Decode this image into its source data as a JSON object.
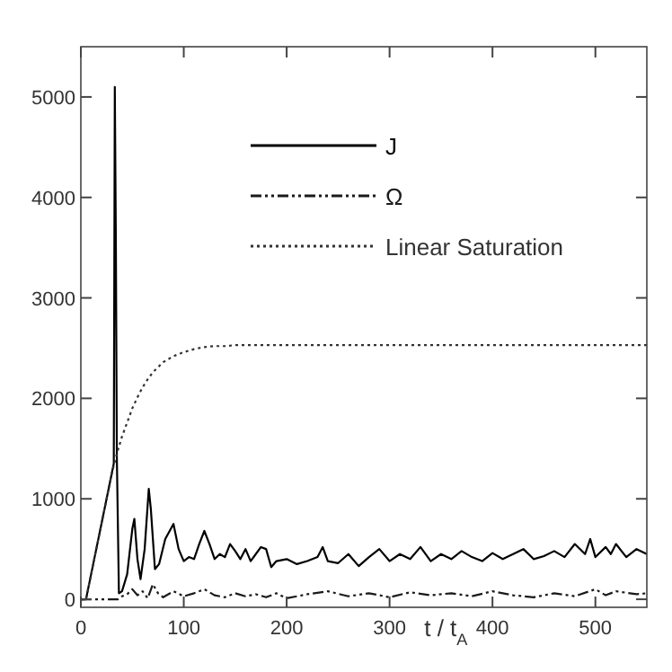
{
  "chart_data": {
    "type": "line",
    "xlabel": "t / t$_{A}$",
    "xlim": [
      0,
      550
    ],
    "ylim": [
      -80,
      5500
    ],
    "xticks": [
      0,
      100,
      200,
      300,
      400,
      500
    ],
    "yticks": [
      0,
      1000,
      2000,
      3000,
      4000,
      5000
    ],
    "legend": "top",
    "grid": false,
    "series": [
      {
        "name": "J",
        "color": "#000000",
        "line_style": "solid",
        "x": [
          0,
          5,
          10,
          15,
          20,
          25,
          30,
          32,
          33,
          34,
          35,
          37,
          40,
          45,
          50,
          52,
          55,
          58,
          62,
          66,
          68,
          72,
          76,
          82,
          90,
          95,
          100,
          105,
          110,
          115,
          120,
          125,
          130,
          135,
          140,
          145,
          150,
          155,
          160,
          165,
          170,
          175,
          180,
          185,
          190,
          200,
          210,
          220,
          230,
          235,
          240,
          250,
          260,
          270,
          280,
          290,
          300,
          310,
          320,
          330,
          340,
          350,
          360,
          370,
          380,
          390,
          400,
          410,
          420,
          430,
          440,
          450,
          460,
          470,
          480,
          490,
          495,
          500,
          510,
          515,
          520,
          530,
          540,
          550
        ],
        "values": [
          0,
          0,
          250,
          500,
          750,
          1000,
          1250,
          1350,
          5100,
          3600,
          1400,
          60,
          80,
          250,
          700,
          800,
          400,
          200,
          500,
          1100,
          900,
          300,
          350,
          600,
          750,
          500,
          380,
          420,
          400,
          550,
          680,
          550,
          400,
          450,
          420,
          550,
          480,
          400,
          500,
          380,
          450,
          520,
          500,
          320,
          380,
          400,
          350,
          380,
          420,
          520,
          380,
          360,
          450,
          330,
          420,
          500,
          380,
          450,
          400,
          520,
          380,
          450,
          400,
          480,
          420,
          380,
          460,
          400,
          450,
          500,
          400,
          430,
          480,
          420,
          550,
          450,
          600,
          420,
          520,
          450,
          550,
          420,
          500,
          450
        ]
      },
      {
        "name": "Ω",
        "color": "#1a1a1a",
        "line_style": "dashdot",
        "x": [
          0,
          30,
          36,
          40,
          45,
          50,
          55,
          60,
          65,
          70,
          75,
          80,
          90,
          100,
          110,
          120,
          130,
          140,
          150,
          160,
          170,
          180,
          190,
          200,
          220,
          240,
          260,
          280,
          300,
          320,
          340,
          360,
          380,
          400,
          420,
          440,
          460,
          480,
          500,
          510,
          520,
          540,
          550
        ],
        "values": [
          0,
          0,
          0,
          30,
          50,
          100,
          40,
          80,
          10,
          150,
          60,
          20,
          80,
          30,
          60,
          100,
          40,
          20,
          60,
          30,
          50,
          20,
          60,
          10,
          50,
          80,
          30,
          60,
          20,
          70,
          40,
          60,
          30,
          80,
          40,
          20,
          60,
          30,
          100,
          40,
          80,
          50,
          60
        ]
      },
      {
        "name": "Linear Saturation",
        "color": "#333333",
        "line_style": "dotted",
        "x": [
          0,
          5,
          10,
          15,
          20,
          25,
          30,
          35,
          40,
          45,
          50,
          55,
          60,
          65,
          70,
          80,
          90,
          100,
          110,
          120,
          130,
          140,
          150,
          175,
          200,
          250,
          300,
          400,
          550
        ],
        "values": [
          0,
          0,
          250,
          500,
          750,
          1000,
          1250,
          1450,
          1620,
          1760,
          1900,
          2010,
          2110,
          2190,
          2260,
          2360,
          2420,
          2460,
          2490,
          2510,
          2520,
          2520,
          2530,
          2530,
          2530,
          2530,
          2530,
          2530,
          2530
        ]
      }
    ]
  }
}
